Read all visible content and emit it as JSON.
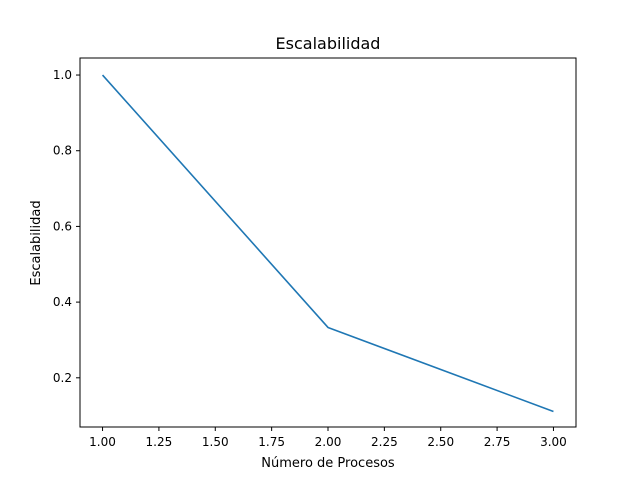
{
  "chart_data": {
    "type": "line",
    "title": "Escalabilidad",
    "xlabel": "Número de Procesos",
    "ylabel": "Escalabilidad",
    "xlim": [
      0.9,
      3.1
    ],
    "ylim": [
      0.07,
      1.045
    ],
    "x_ticks": [
      "1.00",
      "1.25",
      "1.50",
      "1.75",
      "2.00",
      "2.25",
      "2.50",
      "2.75",
      "3.00"
    ],
    "y_ticks": [
      "0.2",
      "0.4",
      "0.6",
      "0.8",
      "1.0"
    ],
    "grid": false,
    "series": [
      {
        "x": [
          1,
          2,
          3
        ],
        "values": [
          1.0,
          0.333,
          0.111
        ],
        "color": "#1f77b4"
      }
    ]
  }
}
